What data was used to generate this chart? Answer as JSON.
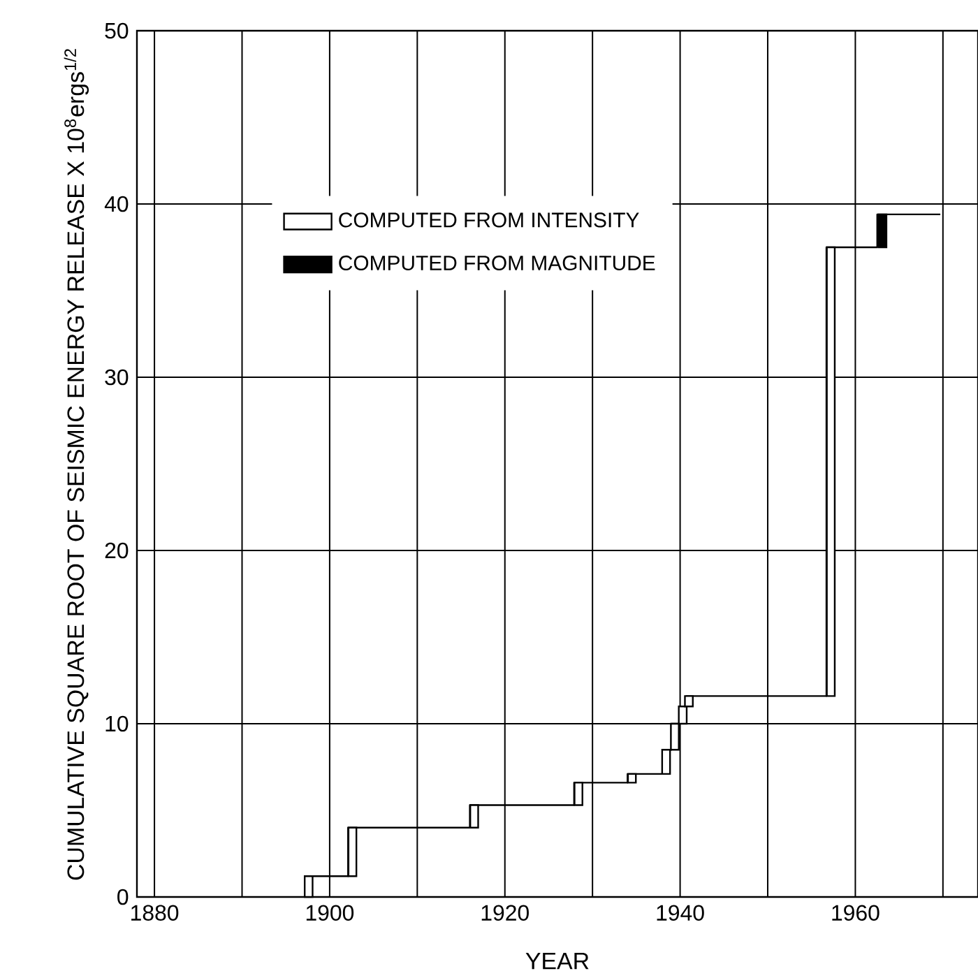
{
  "chart_data": {
    "type": "step",
    "xlabel": "YEAR",
    "ylabel": "CUMULATIVE SQUARE ROOT OF SEISMIC ENERGY RELEASE X 10$^{8}$ergs$^{1/2}$",
    "xlim": [
      1878,
      1974
    ],
    "ylim": [
      0,
      50
    ],
    "xticks": [
      1880,
      {
        "value": 1890,
        "label": null
      },
      1900,
      {
        "value": 1910,
        "label": null
      },
      1920,
      {
        "value": 1930,
        "label": null
      },
      1940,
      {
        "value": 1950,
        "label": null
      },
      1960,
      {
        "value": 1970,
        "label": null
      }
    ],
    "yticks": [
      0,
      10,
      20,
      30,
      40,
      50
    ],
    "grid": true,
    "legend": "top left",
    "series": [
      {
        "color": "#000000",
        "x": [
          1897.1,
          1902.1,
          1916.0,
          1927.9,
          1934.0,
          1938.0,
          1939.0,
          1940.0,
          1940.7,
          1956.7,
          1962.5,
          1969.7
        ],
        "values": [
          1.2,
          4.0,
          5.3,
          6.6,
          7.1,
          8.5,
          10.0,
          11.0,
          11.6,
          37.5,
          39.4,
          39.4
        ]
      },
      {
        "type": "bar",
        "name": "COMPUTED FROM INTENSITY",
        "color": "#ffffff",
        "x": [
          1897.6,
          1902.6,
          1916.5,
          1928.4,
          1934.5,
          1938.4,
          1939.4,
          1940.3,
          1941.0,
          1957.2
        ],
        "base": [
          0,
          1.2,
          4.0,
          5.3,
          6.6,
          7.1,
          8.5,
          10.0,
          11.0,
          11.6
        ],
        "values": [
          1.2,
          2.8,
          1.3,
          1.3,
          0.5,
          1.4,
          1.5,
          1.0,
          0.6,
          25.9
        ]
      },
      {
        "type": "bar",
        "name": "COMPUTED FROM MAGNITUDE",
        "color": "#000000",
        "x": [
          1963.1
        ],
        "base": [
          37.5
        ],
        "values": [
          1.9
        ]
      }
    ]
  }
}
